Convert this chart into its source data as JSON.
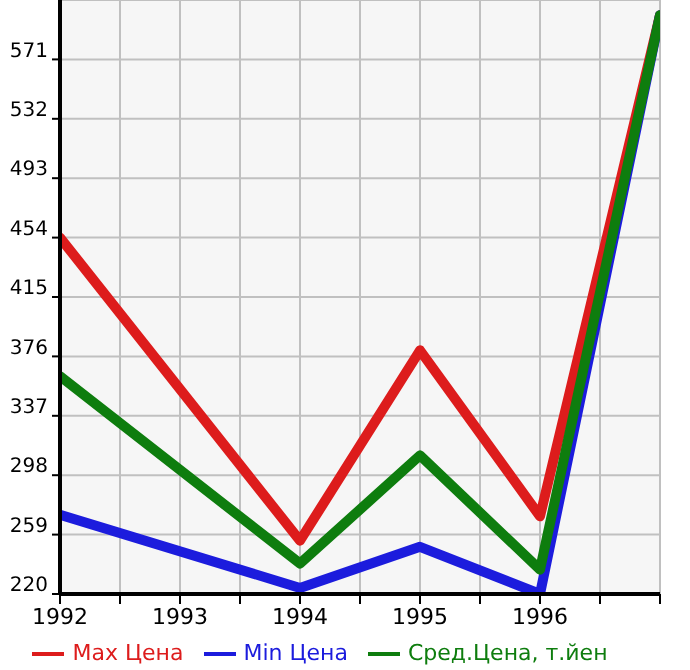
{
  "chart_data": {
    "type": "line",
    "x": [
      1992,
      1994,
      1995,
      1996,
      1997
    ],
    "series": [
      {
        "name": "Max Цена",
        "color": "#dd1c1c",
        "values": [
          454,
          255,
          380,
          271,
          600
        ]
      },
      {
        "name": "Min Цена",
        "color": "#1c1cdd",
        "values": [
          272,
          224,
          251,
          220,
          600
        ]
      },
      {
        "name": "Сред.Цена, т.йен",
        "color": "#0e7d0e",
        "values": [
          363,
          240,
          311,
          236,
          600
        ]
      }
    ],
    "xlim": [
      1992,
      1997
    ],
    "xticks": [
      1992,
      {
        "value": 1992.5,
        "label": null
      },
      1993,
      {
        "value": 1993.5,
        "label": null
      },
      1994,
      {
        "value": 1994.5,
        "label": null
      },
      1995,
      {
        "value": 1995.5,
        "label": null
      },
      1996,
      {
        "value": 1996.5,
        "label": null
      },
      {
        "value": 1997,
        "label": null
      }
    ],
    "ylim": [
      220,
      610
    ],
    "yticks": [
      220,
      259,
      298,
      337,
      376,
      415,
      454,
      493,
      532,
      571
    ],
    "grid": true,
    "legend": "bottom",
    "marker": "none",
    "line_style": "solid"
  }
}
